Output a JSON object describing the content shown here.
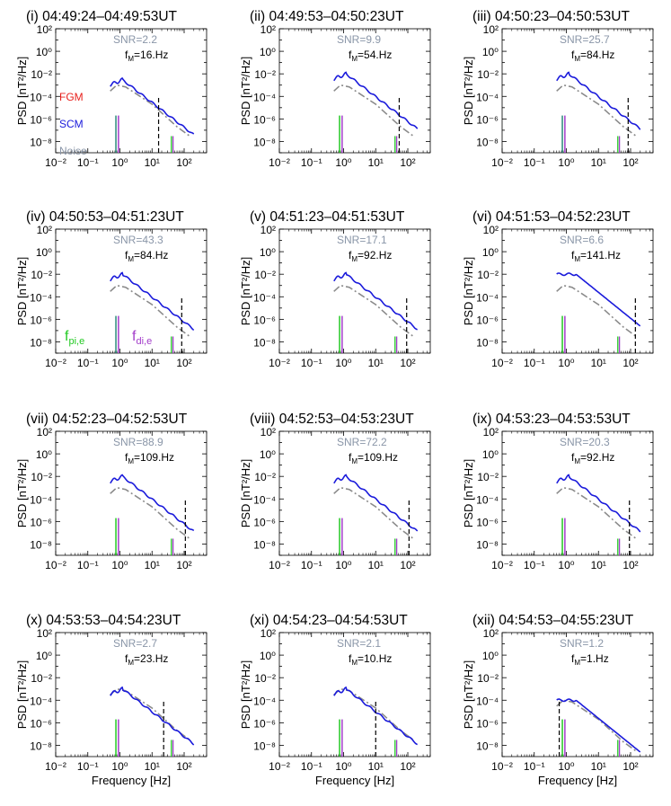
{
  "figure": {
    "ylabel": "PSD [nT²/Hz]",
    "xlabel": "Frequency [Hz]",
    "legend": [
      {
        "label": "FGM",
        "color": "#e8211d"
      },
      {
        "label": "SCM",
        "color": "#1a1adb"
      },
      {
        "label": "Noise",
        "color": "#8a96a8"
      }
    ],
    "fmarks": [
      {
        "label": "f",
        "sub": "pi,e",
        "color": "#22c922"
      },
      {
        "label": "f",
        "sub": "di,e",
        "color": "#a23cc9"
      }
    ],
    "colors": {
      "fgm": "#e8211d",
      "scm": "#1a1adb",
      "noise": "#8a8a8a",
      "snr": "#8a96a8",
      "fpi": "#22c922",
      "fdi": "#a23cc9",
      "fm": "#000000",
      "teal": "#2a8a7a"
    }
  },
  "chart_data": [
    {
      "type": "line",
      "title": "(i) 04:49:24–04:49:53UT",
      "snr": "SNR=2.2",
      "fm_label": "f",
      "fm_sub": "M",
      "fm_value": "=16.Hz",
      "fm_hz": 16,
      "fpi_hz": 0.75,
      "fdi_hz": 0.9,
      "fpi_h": 2e-06,
      "fdi_h": 2e-06,
      "fpi_gray": true,
      "noise_peak": 0.001,
      "scm_level": 0.003,
      "fgm_tail": 0.0003,
      "fgm_low": 1.5,
      "fgm_low_bumps": 0.3,
      "show_legend": true,
      "show_f_labels": false,
      "scm_bump": "normal",
      "xlim": [
        0.01,
        500
      ],
      "ylim": [
        1e-09,
        100
      ],
      "xticks": [
        "10⁻²",
        "10⁻¹",
        "10⁰",
        "10¹",
        "10²"
      ],
      "yticks": [
        "10²",
        "10⁰",
        "10⁻²",
        "10⁻⁴",
        "10⁻⁶",
        "10⁻⁸"
      ]
    },
    {
      "type": "line",
      "title": "(ii) 04:49:53–04:50:23UT",
      "snr": "SNR=9.9",
      "fm_label": "f",
      "fm_sub": "M",
      "fm_value": "=54.Hz",
      "fm_hz": 54,
      "fpi_hz": 0.75,
      "fdi_hz": 0.9,
      "fpi_h": 2e-06,
      "fdi_h": 2e-06,
      "fpi_gray": false,
      "noise_peak": 0.001,
      "scm_level": 0.01,
      "fgm_tail": 0.0002,
      "fgm_low": 1.5,
      "fgm_low_bumps": 0.3,
      "show_legend": false,
      "show_f_labels": false,
      "scm_bump": "normal",
      "xlim": [
        0.01,
        500
      ],
      "ylim": [
        1e-09,
        100
      ],
      "xticks": [
        "10⁻²",
        "10⁻¹",
        "10⁰",
        "10¹",
        "10²"
      ],
      "yticks": [
        "10²",
        "10⁰",
        "10⁻²",
        "10⁻⁴",
        "10⁻⁶",
        "10⁻⁸"
      ]
    },
    {
      "type": "line",
      "title": "(iii) 04:50:23–04:50:53UT",
      "snr": "SNR=25.7",
      "fm_label": "f",
      "fm_sub": "M",
      "fm_value": "=84.Hz",
      "fm_hz": 84,
      "fpi_hz": 0.75,
      "fdi_hz": 0.9,
      "fpi_h": 2e-06,
      "fdi_h": 2e-06,
      "fpi_gray": true,
      "noise_peak": 0.001,
      "scm_level": 0.01,
      "fgm_tail": 0.0003,
      "fgm_low": 1.5,
      "fgm_low_bumps": 0.3,
      "show_legend": false,
      "show_f_labels": false,
      "scm_bump": "normal",
      "xlim": [
        0.01,
        500
      ],
      "ylim": [
        1e-09,
        100
      ],
      "xticks": [
        "10⁻²",
        "10⁻¹",
        "10⁰",
        "10¹",
        "10²"
      ],
      "yticks": [
        "10²",
        "10⁰",
        "10⁻²",
        "10⁻⁴",
        "10⁻⁶",
        "10⁻⁸"
      ]
    },
    {
      "type": "line",
      "title": "(iv) 04:50:53–04:51:23UT",
      "snr": "SNR=43.3",
      "fm_label": "f",
      "fm_sub": "M",
      "fm_value": "=84.Hz",
      "fm_hz": 84,
      "fpi_hz": 0.75,
      "fdi_hz": 0.9,
      "fpi_h": 2e-06,
      "fdi_h": 2e-06,
      "fpi_gray": true,
      "noise_peak": 0.001,
      "scm_level": 0.01,
      "fgm_tail": 0.0004,
      "fgm_low": 1.5,
      "fgm_low_bumps": 0.3,
      "show_legend": false,
      "show_f_labels": true,
      "scm_bump": "normal",
      "xlim": [
        0.01,
        500
      ],
      "ylim": [
        1e-09,
        100
      ],
      "xticks": [
        "10⁻²",
        "10⁻¹",
        "10⁰",
        "10¹",
        "10²"
      ],
      "yticks": [
        "10²",
        "10⁰",
        "10⁻²",
        "10⁻⁴",
        "10⁻⁶",
        "10⁻⁸"
      ]
    },
    {
      "type": "line",
      "title": "(v) 04:51:23–04:51:53UT",
      "snr": "SNR=17.1",
      "fm_label": "f",
      "fm_sub": "M",
      "fm_value": "=92.Hz",
      "fm_hz": 92,
      "fpi_hz": 0.75,
      "fdi_hz": 0.9,
      "fpi_h": 2e-06,
      "fdi_h": 2e-06,
      "fpi_gray": false,
      "noise_peak": 0.001,
      "scm_level": 0.01,
      "fgm_tail": 0.0003,
      "fgm_low": 1.5,
      "fgm_low_bumps": 0.3,
      "show_legend": false,
      "show_f_labels": false,
      "scm_bump": "normal",
      "xlim": [
        0.01,
        500
      ],
      "ylim": [
        1e-09,
        100
      ],
      "xticks": [
        "10⁻²",
        "10⁻¹",
        "10⁰",
        "10¹",
        "10²"
      ],
      "yticks": [
        "10²",
        "10⁰",
        "10⁻²",
        "10⁻⁴",
        "10⁻⁶",
        "10⁻⁸"
      ]
    },
    {
      "type": "line",
      "title": "(vi) 04:51:53–04:52:23UT",
      "snr": "SNR=6.6",
      "fm_label": "f",
      "fm_sub": "M",
      "fm_value": "=141.Hz",
      "fm_hz": 141,
      "fpi_hz": 0.75,
      "fdi_hz": 0.9,
      "fpi_h": 2e-06,
      "fdi_h": 2e-06,
      "fpi_gray": false,
      "noise_peak": 0.001,
      "scm_level": 0.01,
      "fgm_tail": 0.0001,
      "fgm_low": 1.5,
      "fgm_low_bumps": 0.3,
      "show_legend": false,
      "show_f_labels": false,
      "scm_bump": "flat",
      "xlim": [
        0.01,
        500
      ],
      "ylim": [
        1e-09,
        100
      ],
      "xticks": [
        "10⁻²",
        "10⁻¹",
        "10⁰",
        "10¹",
        "10²"
      ],
      "yticks": [
        "10²",
        "10⁰",
        "10⁻²",
        "10⁻⁴",
        "10⁻⁶",
        "10⁻⁸"
      ]
    },
    {
      "type": "line",
      "title": "(vii) 04:52:23–04:52:53UT",
      "snr": "SNR=88.9",
      "fm_label": "f",
      "fm_sub": "M",
      "fm_value": "=109.Hz",
      "fm_hz": 109,
      "fpi_hz": 0.75,
      "fdi_hz": 0.9,
      "fpi_h": 2e-06,
      "fdi_h": 2e-06,
      "fpi_gray": false,
      "noise_peak": 0.001,
      "scm_level": 0.01,
      "fgm_tail": 0.0006,
      "fgm_low": 4,
      "fgm_low_bumps": 1,
      "show_legend": false,
      "show_f_labels": false,
      "scm_bump": "normal",
      "xlim": [
        0.01,
        500
      ],
      "ylim": [
        1e-09,
        100
      ],
      "xticks": [
        "10⁻²",
        "10⁻¹",
        "10⁰",
        "10¹",
        "10²"
      ],
      "yticks": [
        "10²",
        "10⁰",
        "10⁻²",
        "10⁻⁴",
        "10⁻⁶",
        "10⁻⁸"
      ]
    },
    {
      "type": "line",
      "title": "(viii) 04:52:53–04:53:23UT",
      "snr": "SNR=72.2",
      "fm_label": "f",
      "fm_sub": "M",
      "fm_value": "=109.Hz",
      "fm_hz": 109,
      "fpi_hz": 0.75,
      "fdi_hz": 0.9,
      "fpi_h": 2e-06,
      "fdi_h": 2e-06,
      "fpi_gray": false,
      "noise_peak": 0.001,
      "scm_level": 0.01,
      "fgm_tail": 0.0006,
      "fgm_low": 8,
      "fgm_low_bumps": 1,
      "show_legend": false,
      "show_f_labels": false,
      "scm_bump": "normal",
      "xlim": [
        0.01,
        500
      ],
      "ylim": [
        1e-09,
        100
      ],
      "xticks": [
        "10⁻²",
        "10⁻¹",
        "10⁰",
        "10¹",
        "10²"
      ],
      "yticks": [
        "10²",
        "10⁰",
        "10⁻²",
        "10⁻⁴",
        "10⁻⁶",
        "10⁻⁸"
      ]
    },
    {
      "type": "line",
      "title": "(ix) 04:53:23–04:53:53UT",
      "snr": "SNR=20.3",
      "fm_label": "f",
      "fm_sub": "M",
      "fm_value": "=92.Hz",
      "fm_hz": 92,
      "fpi_hz": 0.75,
      "fdi_hz": 0.9,
      "fpi_h": 2e-06,
      "fdi_h": 2e-06,
      "fpi_gray": false,
      "noise_peak": 0.001,
      "scm_level": 0.01,
      "fgm_tail": 0.0003,
      "fgm_low": 3,
      "fgm_low_bumps": 1,
      "show_legend": false,
      "show_f_labels": false,
      "scm_bump": "normal",
      "xlim": [
        0.01,
        500
      ],
      "ylim": [
        1e-09,
        100
      ],
      "xticks": [
        "10⁻²",
        "10⁻¹",
        "10⁰",
        "10¹",
        "10²"
      ],
      "yticks": [
        "10²",
        "10⁰",
        "10⁻²",
        "10⁻⁴",
        "10⁻⁶",
        "10⁻⁸"
      ]
    },
    {
      "type": "line",
      "title": "(x) 04:53:53–04:54:23UT",
      "snr": "SNR=2.7",
      "fm_label": "f",
      "fm_sub": "M",
      "fm_value": "=23.Hz",
      "fm_hz": 23,
      "fpi_hz": 0.75,
      "fdi_hz": 0.9,
      "fpi_h": 2e-06,
      "fdi_h": 2e-06,
      "fpi_gray": false,
      "noise_peak": 0.001,
      "scm_level": 0.001,
      "fgm_tail": 4e-05,
      "fgm_low": 2,
      "fgm_low_bumps": 0.3,
      "show_legend": false,
      "show_f_labels": false,
      "scm_bump": "normal",
      "xlim": [
        0.01,
        500
      ],
      "ylim": [
        1e-09,
        100
      ],
      "xticks": [
        "10⁻²",
        "10⁻¹",
        "10⁰",
        "10¹",
        "10²"
      ],
      "yticks": [
        "10²",
        "10⁰",
        "10⁻²",
        "10⁻⁴",
        "10⁻⁶",
        "10⁻⁸"
      ]
    },
    {
      "type": "line",
      "title": "(xi) 04:54:23–04:54:53UT",
      "snr": "SNR=2.1",
      "fm_label": "f",
      "fm_sub": "M",
      "fm_value": "=10.Hz",
      "fm_hz": 10,
      "fpi_hz": 0.75,
      "fdi_hz": 0.9,
      "fpi_h": 2e-06,
      "fdi_h": 2e-06,
      "fpi_gray": false,
      "noise_peak": 0.001,
      "scm_level": 0.001,
      "fgm_tail": 4e-05,
      "fgm_low": 1.5,
      "fgm_low_bumps": 0.3,
      "show_legend": false,
      "show_f_labels": false,
      "scm_bump": "normal",
      "xlim": [
        0.01,
        500
      ],
      "ylim": [
        1e-09,
        100
      ],
      "xticks": [
        "10⁻²",
        "10⁻¹",
        "10⁰",
        "10¹",
        "10²"
      ],
      "yticks": [
        "10²",
        "10⁰",
        "10⁻²",
        "10⁻⁴",
        "10⁻⁶",
        "10⁻⁸"
      ]
    },
    {
      "type": "line",
      "title": "(xii) 04:54:53–04:55:23UT",
      "snr": "SNR=1.2",
      "fm_label": "f",
      "fm_sub": "M",
      "fm_value": "=1.Hz",
      "fm_hz": 0.6,
      "fpi_hz": 0.75,
      "fdi_hz": 0.9,
      "fpi_h": 2e-06,
      "fdi_h": 2e-06,
      "fpi_gray": false,
      "noise_peak": 0.0001,
      "scm_level": 0.0001,
      "fgm_tail": 2e-05,
      "fgm_low": 1.5,
      "fgm_low_bumps": 0.3,
      "show_legend": false,
      "show_f_labels": false,
      "scm_bump": "flat",
      "xlim": [
        0.01,
        500
      ],
      "ylim": [
        1e-09,
        100
      ],
      "xticks": [
        "10⁻²",
        "10⁻¹",
        "10⁰",
        "10¹",
        "10²"
      ],
      "yticks": [
        "10²",
        "10⁰",
        "10⁻²",
        "10⁻⁴",
        "10⁻⁶",
        "10⁻⁸"
      ]
    }
  ]
}
